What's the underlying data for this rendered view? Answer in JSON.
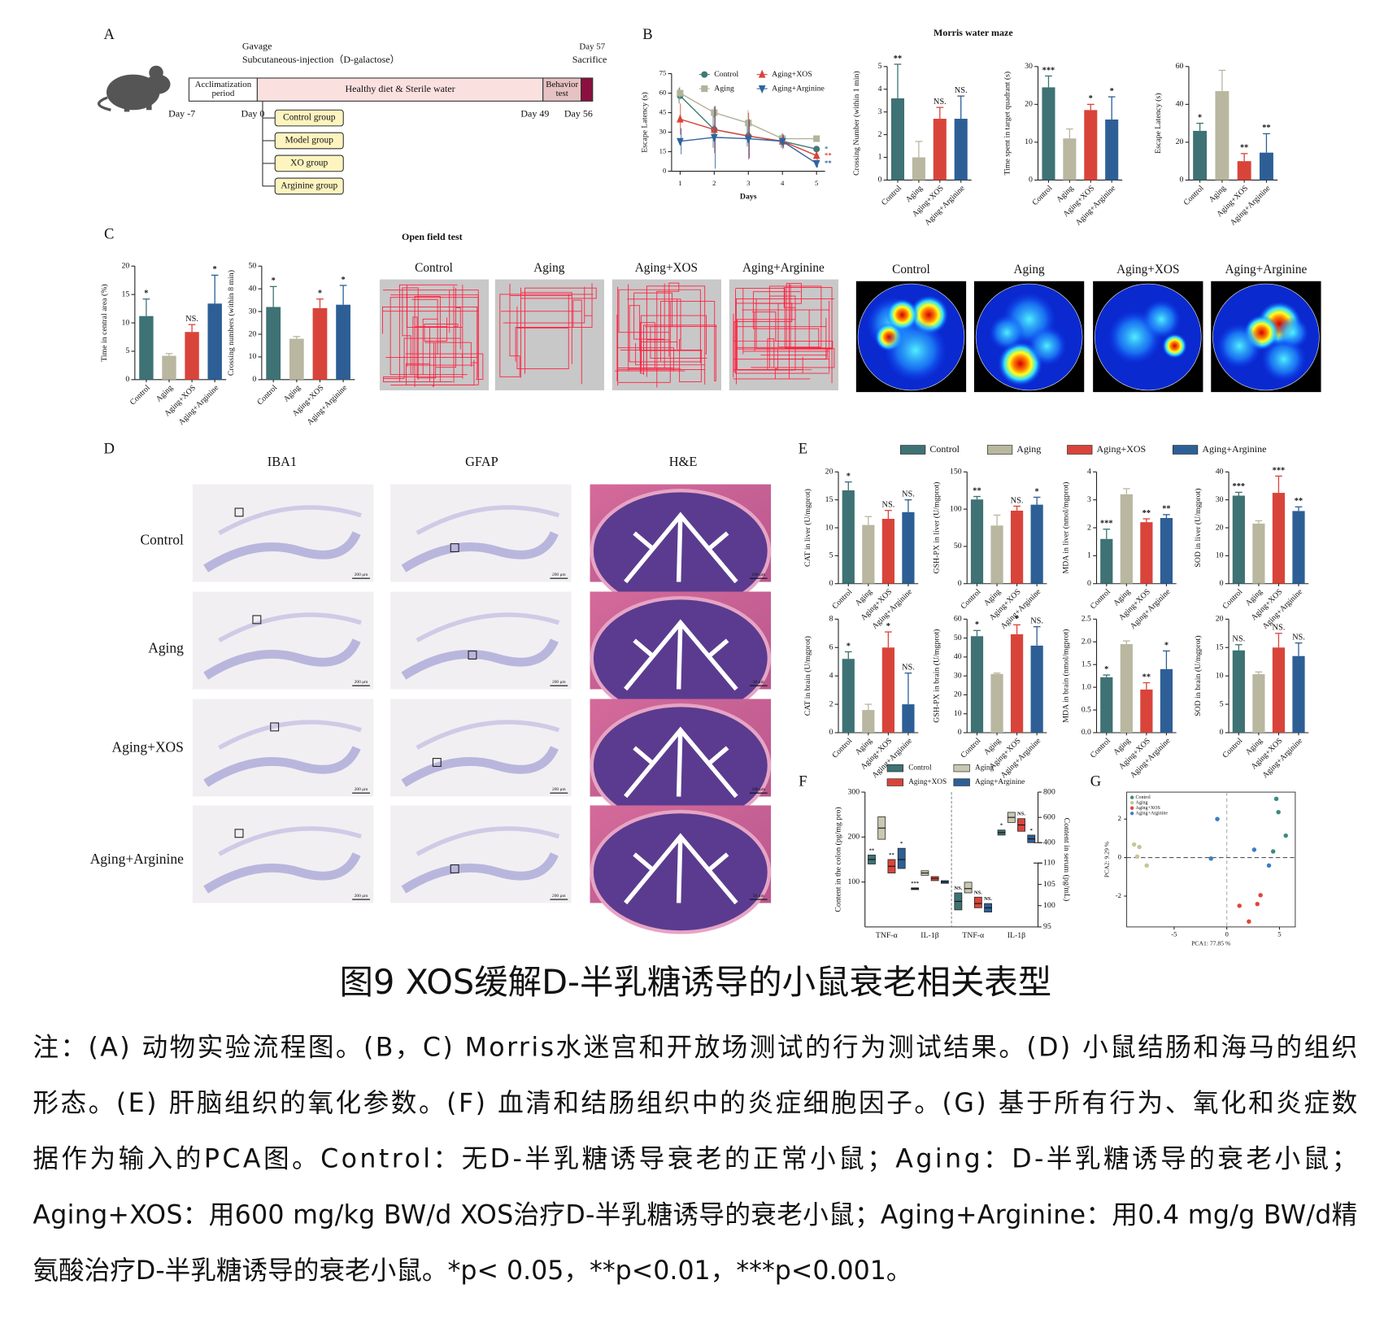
{
  "figure": {
    "panel_labels": [
      "A",
      "B",
      "C",
      "D",
      "E",
      "F",
      "G"
    ],
    "title": "图9 XOS缓解D-半乳糖诱导的小鼠衰老相关表型",
    "caption_lines": [
      "注：(A) 动物实验流程图。(B，C) Morris水迷宫和开放场测试的行为测试结果。(D) 小鼠结肠和海马的组织",
      "形态。(E) 肝脑组织的氧化参数。(F) 血清和结肠组织中的炎症细胞因子。(G) 基于所有行为、氧化和炎症数",
      "据作为输入的PCA图。Control：无D-半乳糖诱导衰老的正常小鼠；Aging：D-半乳糖诱导的衰老小鼠；",
      "Aging+XOS：用600 mg/kg BW/d XOS治疗D-半乳糖诱导的衰老小鼠；Aging+Arginine：用0.4 mg/g BW/d精",
      "氨酸治疗D-半乳糖诱导的衰老小鼠。*p< 0.05，**p<0.01，***p<0.001。"
    ]
  },
  "panel_a": {
    "gavage": "Gavage",
    "injection": "Subcutaneous-injection（D-galactose）",
    "day57": "Day 57",
    "sacrifice": "Sacrifice",
    "stages": [
      [
        "Acclimatization",
        "period"
      ],
      [
        "Healthy diet & Sterile water"
      ],
      [
        "Behavior",
        "test"
      ]
    ],
    "days": [
      "Day -7",
      "Day 0",
      "Day 49",
      "Day 56"
    ],
    "groups": [
      "Control group",
      "Model group",
      "XO group",
      "Arginine group"
    ]
  },
  "panel_b": {
    "title": "Morris water maze"
  },
  "panel_c": {
    "title": "Open field test",
    "track_labels": [
      "Control",
      "Aging",
      "Aging+XOS",
      "Aging+Arginine"
    ],
    "heatmap_labels": [
      "Control",
      "Aging",
      "Aging+XOS",
      "Aging+Arginine"
    ]
  },
  "panel_d": {
    "columns": [
      "IBA1",
      "GFAP",
      "H&E"
    ],
    "rows": [
      "Control",
      "Aging",
      "Aging+XOS",
      "Aging+Arginine"
    ],
    "scale_bars": [
      [
        "200 μm",
        "200 μm",
        "100 μm"
      ],
      [
        "200 μm",
        "200 μm",
        "50 μm"
      ],
      [
        "200 μm",
        "200 μm",
        "100 μm"
      ],
      [
        "200 μm",
        "200 μm",
        "50 μm"
      ]
    ]
  },
  "panel_e": {
    "legend": {
      "names": [
        "Control",
        "Aging",
        "Aging+XOS",
        "Aging+Arginine"
      ],
      "colors": [
        "#3e7274",
        "#b9b7a0",
        "#d9443a",
        "#2d5f96"
      ]
    }
  },
  "chart_data": [
    {
      "type": "line",
      "xlabel": "Days",
      "ylabel": "Escape Latency (s)",
      "x": [
        1,
        2,
        3,
        4,
        5
      ],
      "xlim": [
        0.75,
        5.25
      ],
      "xticks": [
        1,
        2,
        3,
        4,
        5
      ],
      "ylim": [
        0,
        75
      ],
      "yticks": [
        0,
        15,
        30,
        45,
        60,
        75
      ],
      "series": [
        {
          "name": "Control",
          "color": "#3e7a76",
          "marker": "circle",
          "values": [
            58,
            32,
            27,
            23,
            17
          ],
          "errors": [
            6,
            14,
            8,
            5,
            2
          ],
          "significance": "*"
        },
        {
          "name": "Aging",
          "color": "#b3b29b",
          "marker": "square",
          "values": [
            60,
            45,
            37,
            25,
            25
          ],
          "errors": [
            5,
            4,
            10,
            4,
            2
          ]
        },
        {
          "name": "Aging+XOS",
          "color": "#d9453a",
          "marker": "triangle",
          "values": [
            40,
            32,
            27,
            23,
            12
          ],
          "errors": [
            12,
            18,
            18,
            6,
            3
          ],
          "significance": "**"
        },
        {
          "name": "Aging+Arginine",
          "color": "#2f64a0",
          "marker": "triangle-down",
          "values": [
            23,
            26,
            25,
            23,
            6
          ],
          "errors": [
            10,
            24,
            15,
            5,
            3
          ],
          "significance": "**"
        }
      ]
    },
    {
      "type": "bar",
      "ylabel": "Crossing Number (within 1 min)",
      "categories": [
        "Control",
        "Aging",
        "Aging+XOS",
        "Aging+Arginine"
      ],
      "values": [
        3.6,
        1,
        2.7,
        2.7
      ],
      "errors": [
        1.5,
        0.7,
        0.5,
        1
      ],
      "significance": [
        "**",
        null,
        "NS.",
        "NS."
      ],
      "colors": [
        "#3e7274",
        "#b9b7a0",
        "#d9443a",
        "#2d5f96"
      ],
      "ylim": [
        0,
        5
      ],
      "yticks": [
        0,
        1,
        2,
        3,
        4,
        5
      ]
    },
    {
      "type": "bar",
      "ylabel": "Time spent in target quadrant (s)",
      "categories": [
        "Control",
        "Aging",
        "Aging+XOS",
        "Aging+Arginine"
      ],
      "values": [
        24.5,
        11,
        18.5,
        16
      ],
      "errors": [
        3,
        2.5,
        1.5,
        6
      ],
      "significance": [
        "***",
        null,
        "*",
        "*"
      ],
      "colors": [
        "#3e7274",
        "#b9b7a0",
        "#d9443a",
        "#2d5f96"
      ],
      "ylim": [
        0,
        30
      ],
      "yticks": [
        0,
        10,
        20,
        30
      ]
    },
    {
      "type": "bar",
      "ylabel": "Escape Latency (s)",
      "categories": [
        "Control",
        "Aging",
        "Aging+XOS",
        "Aging+Arginine"
      ],
      "values": [
        26,
        47,
        10,
        14.5
      ],
      "errors": [
        4,
        11,
        4,
        10
      ],
      "significance": [
        "*",
        null,
        "**",
        "**"
      ],
      "colors": [
        "#3e7274",
        "#b9b7a0",
        "#d9443a",
        "#2d5f96"
      ],
      "ylim": [
        0,
        60
      ],
      "yticks": [
        0,
        20,
        40,
        60
      ]
    },
    {
      "type": "bar",
      "ylabel": "Time in central area (%)",
      "categories": [
        "Control",
        "Aging",
        "Aging+XOS",
        "Aging+Arginine"
      ],
      "values": [
        11.2,
        4.2,
        8.4,
        13.4
      ],
      "errors": [
        3,
        0.4,
        1.3,
        5
      ],
      "significance": [
        "*",
        null,
        "NS.",
        "*"
      ],
      "colors": [
        "#3e7274",
        "#b9b7a0",
        "#d9443a",
        "#2d5f96"
      ],
      "ylim": [
        0,
        20
      ],
      "yticks": [
        0,
        5,
        10,
        15,
        20
      ]
    },
    {
      "type": "bar",
      "ylabel": "Crossing numbers (within 8 min)",
      "categories": [
        "Control",
        "Aging",
        "Aging+XOS",
        "Aging+Arginine"
      ],
      "values": [
        32,
        18,
        31.5,
        33
      ],
      "errors": [
        9,
        1,
        4,
        8.5
      ],
      "significance": [
        "*",
        null,
        "*",
        "*"
      ],
      "colors": [
        "#3e7274",
        "#b9b7a0",
        "#d9443a",
        "#2d5f96"
      ],
      "ylim": [
        0,
        50
      ],
      "yticks": [
        0,
        10,
        20,
        30,
        40,
        50
      ]
    },
    {
      "type": "bar",
      "ylabel": "CAT in liver (U/mgprot)",
      "categories": [
        "Control",
        "Aging",
        "Aging+XOS",
        "Aging+Arginine"
      ],
      "values": [
        16.7,
        10.5,
        11.6,
        12.8
      ],
      "errors": [
        1.5,
        1.5,
        1.5,
        2.2
      ],
      "significance": [
        "*",
        null,
        "NS.",
        "NS."
      ],
      "colors": [
        "#3e7274",
        "#b9b7a0",
        "#d9443a",
        "#2d5f96"
      ],
      "ylim": [
        0,
        20
      ],
      "yticks": [
        0,
        5,
        10,
        15,
        20
      ]
    },
    {
      "type": "bar",
      "ylabel": "GSH-PX in liver (U/mgprot)",
      "categories": [
        "Control",
        "Aging",
        "Aging+XOS",
        "Aging+Arginine"
      ],
      "values": [
        113,
        78,
        98,
        106
      ],
      "errors": [
        4,
        14,
        6,
        10
      ],
      "significance": [
        "**",
        null,
        "NS.",
        "*"
      ],
      "colors": [
        "#3e7274",
        "#b9b7a0",
        "#d9443a",
        "#2d5f96"
      ],
      "ylim": [
        0,
        150
      ],
      "yticks": [
        0,
        50,
        100,
        150
      ]
    },
    {
      "type": "bar",
      "ylabel": "MDA in liver (nmol/mgprot)",
      "categories": [
        "Control",
        "Aging",
        "Aging+XOS",
        "Aging+Arginine"
      ],
      "values": [
        1.6,
        3.2,
        2.2,
        2.35
      ],
      "errors": [
        0.35,
        0.2,
        0.12,
        0.12
      ],
      "significance": [
        "***",
        null,
        "**",
        "**"
      ],
      "colors": [
        "#3e7274",
        "#b9b7a0",
        "#d9443a",
        "#2d5f96"
      ],
      "ylim": [
        0,
        4
      ],
      "yticks": [
        0,
        1,
        2,
        3,
        4
      ]
    },
    {
      "type": "bar",
      "ylabel": "SOD in liver (U/mgprot)",
      "categories": [
        "Control",
        "Aging",
        "Aging+XOS",
        "Aging+Arginine"
      ],
      "values": [
        31.5,
        21.5,
        32.5,
        26
      ],
      "errors": [
        1.2,
        1,
        6,
        1.5
      ],
      "significance": [
        "***",
        null,
        "***",
        "**"
      ],
      "colors": [
        "#3e7274",
        "#b9b7a0",
        "#d9443a",
        "#2d5f96"
      ],
      "ylim": [
        0,
        40
      ],
      "yticks": [
        0,
        10,
        20,
        30,
        40
      ]
    },
    {
      "type": "bar",
      "ylabel": "CAT in brain (U/mgprot)",
      "categories": [
        "Control",
        "Aging",
        "Aging+XOS",
        "Aging+Arginine"
      ],
      "values": [
        5.2,
        1.6,
        6,
        2
      ],
      "errors": [
        0.5,
        0.4,
        1.1,
        2.2
      ],
      "significance": [
        "*",
        null,
        "*",
        "NS."
      ],
      "colors": [
        "#3e7274",
        "#b9b7a0",
        "#d9443a",
        "#2d5f96"
      ],
      "ylim": [
        0,
        8
      ],
      "yticks": [
        0,
        2,
        4,
        6,
        8
      ]
    },
    {
      "type": "bar",
      "ylabel": "GSH-PX in brain (U/mgprot)",
      "categories": [
        "Control",
        "Aging",
        "Aging+XOS",
        "Aging+Arginine"
      ],
      "values": [
        51,
        31,
        52,
        46
      ],
      "errors": [
        3,
        0.5,
        5,
        10
      ],
      "significance": [
        "*",
        null,
        "*",
        "NS."
      ],
      "colors": [
        "#3e7274",
        "#b9b7a0",
        "#d9443a",
        "#2d5f96"
      ],
      "ylim": [
        0,
        60
      ],
      "yticks": [
        0,
        10,
        20,
        30,
        40,
        50,
        60
      ]
    },
    {
      "type": "bar",
      "ylabel": "MDA in brain (nmol/mgprot)",
      "categories": [
        "Control",
        "Aging",
        "Aging+XOS",
        "Aging+Arginine"
      ],
      "values": [
        1.22,
        1.95,
        0.95,
        1.4
      ],
      "errors": [
        0.05,
        0.07,
        0.15,
        0.4
      ],
      "significance": [
        "*",
        null,
        "**",
        "*"
      ],
      "colors": [
        "#3e7274",
        "#b9b7a0",
        "#d9443a",
        "#2d5f96"
      ],
      "ylim": [
        0,
        2.5
      ],
      "yticks": [
        {
          "value": 0,
          "label": "0.0"
        },
        0.5,
        {
          "value": 1,
          "label": "1.0"
        },
        1.5,
        {
          "value": 2,
          "label": "2.0"
        },
        2.5
      ]
    },
    {
      "type": "bar",
      "ylabel": "SOD in brain (U/mgprot)",
      "categories": [
        "Control",
        "Aging",
        "Aging+XOS",
        "Aging+Arginine"
      ],
      "values": [
        14.5,
        10.3,
        15,
        13.5
      ],
      "errors": [
        1,
        0.4,
        2.5,
        2.3
      ],
      "significance": [
        "NS.",
        null,
        "NS.",
        "NS."
      ],
      "colors": [
        "#3e7274",
        "#b9b7a0",
        "#d9443a",
        "#2d5f96"
      ],
      "ylim": [
        0,
        20
      ],
      "yticks": [
        0,
        5,
        10,
        15,
        20
      ]
    },
    {
      "type": "box",
      "ylabel": "Content in the colon (pg/mg pro)",
      "y2label": "Content in serum (pg/mL)",
      "categories": [
        "TNF-α",
        "IL-1β",
        "TNF-α",
        "IL-1β"
      ],
      "category_axis": [
        "y",
        "y",
        "y2",
        "y2_upper"
      ],
      "ylim": [
        0,
        300
      ],
      "yticks": [
        100,
        200,
        300
      ],
      "y2lim": [
        95,
        110
      ],
      "y2ticks": [
        95,
        100,
        105,
        110
      ],
      "y2lim_upper": [
        400,
        800
      ],
      "y2ticks_upper": [
        400,
        600,
        800
      ],
      "series": [
        {
          "name": "Control",
          "color": "#3e7274",
          "q1": [
            140,
            83,
            99,
            460
          ],
          "median": [
            150,
            85,
            101,
            480
          ],
          "q3": [
            160,
            87,
            103,
            500
          ],
          "significance": [
            "**",
            "***",
            "NS.",
            "*"
          ]
        },
        {
          "name": "Aging",
          "color": "#c9c7b2",
          "q1": [
            195,
            115,
            103,
            560
          ],
          "median": [
            220,
            120,
            104,
            600
          ],
          "q3": [
            245,
            125,
            105.5,
            640
          ]
        },
        {
          "name": "Aging+XOS",
          "color": "#d9443a",
          "q1": [
            120,
            103,
            99.5,
            490
          ],
          "median": [
            135,
            108,
            100.5,
            540
          ],
          "q3": [
            150,
            112,
            102,
            590
          ],
          "significance": [
            "**",
            null,
            "NS.",
            "NS."
          ]
        },
        {
          "name": "Aging+Arginine",
          "color": "#2d5f96",
          "q1": [
            130,
            97,
            98.5,
            400
          ],
          "median": [
            150,
            100,
            99.5,
            430
          ],
          "q3": [
            175,
            103,
            100.5,
            460
          ],
          "significance": [
            "*",
            null,
            "NS.",
            "*"
          ]
        }
      ]
    },
    {
      "type": "scatter",
      "xlabel": "PCA1: 77.85 %",
      "ylabel": "PCA2: 9.29 %",
      "xlim": [
        -9.5,
        6.5
      ],
      "ylim": [
        -3.6,
        3.4
      ],
      "xticks": [
        -5,
        0,
        5
      ],
      "yticks": [
        -2,
        0,
        2
      ],
      "series": [
        {
          "name": "Control",
          "color": "#3e8a80",
          "x": [
            4.7,
            4.9,
            5.6,
            4.4
          ],
          "values": [
            3.05,
            2.36,
            1.14,
            0.32
          ]
        },
        {
          "name": "Aging",
          "color": "#c8c49a",
          "x": [
            -8.8,
            -8.3,
            -8.5,
            -7.6
          ],
          "values": [
            0.68,
            0.55,
            0.05,
            -0.41
          ]
        },
        {
          "name": "Aging+XOS",
          "color": "#e0463a",
          "x": [
            1.2,
            2.9,
            3.2,
            2.1
          ],
          "values": [
            -2.5,
            -2.41,
            -1.95,
            -3.32
          ]
        },
        {
          "name": "Aging+Arginine",
          "color": "#3a7fc4",
          "x": [
            -0.9,
            -1.5,
            2.6,
            4.0
          ],
          "values": [
            2.0,
            -0.05,
            0.41,
            -0.41
          ]
        }
      ]
    }
  ]
}
